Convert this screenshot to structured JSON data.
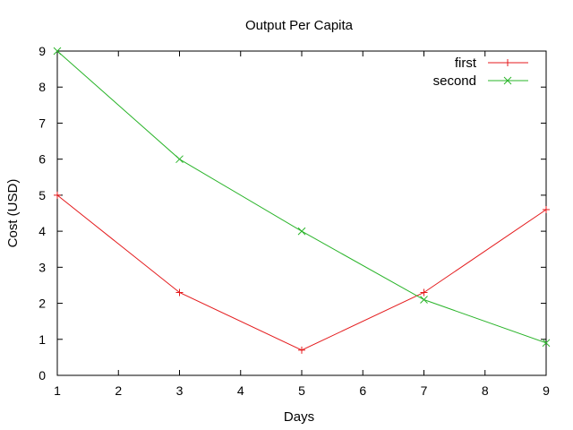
{
  "chart_data": {
    "type": "line",
    "title": "Output Per Capita",
    "xlabel": "Days",
    "ylabel": "Cost (USD)",
    "xlim": [
      1,
      9
    ],
    "ylim": [
      0,
      9
    ],
    "x_ticks": [
      "1",
      "2",
      "3",
      "4",
      "5",
      "6",
      "7",
      "8",
      "9"
    ],
    "y_ticks": [
      "0",
      "1",
      "2",
      "3",
      "4",
      "5",
      "6",
      "7",
      "8",
      "9"
    ],
    "grid": false,
    "legend_position": "top-right",
    "series": [
      {
        "name": "first",
        "color": "#e41a1c",
        "marker": "plus",
        "points": [
          [
            1,
            5
          ],
          [
            3,
            2.3
          ],
          [
            5,
            0.7
          ],
          [
            7,
            2.3
          ],
          [
            9,
            4.6
          ]
        ]
      },
      {
        "name": "second",
        "color": "#2ab42a",
        "marker": "cross",
        "points": [
          [
            1,
            9
          ],
          [
            3,
            6
          ],
          [
            5,
            4
          ],
          [
            7,
            2.1
          ],
          [
            9,
            0.9
          ]
        ]
      }
    ]
  }
}
